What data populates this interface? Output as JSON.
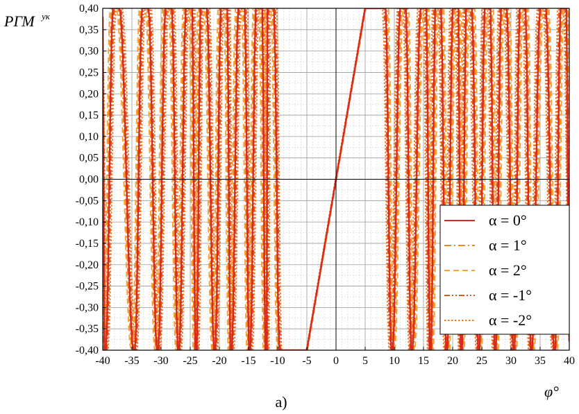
{
  "chart_data": {
    "type": "line",
    "caption": "а)",
    "ylabel_main": "РГМ",
    "ylabel_sup": "ук",
    "xlabel": "φ°",
    "xlim": [
      -40,
      40
    ],
    "ylim": [
      -0.4,
      0.4
    ],
    "x_ticks": [
      -40,
      -35,
      -30,
      -25,
      -20,
      -15,
      -10,
      -5,
      0,
      5,
      10,
      15,
      20,
      25,
      30,
      35,
      40
    ],
    "x_tick_labels": [
      "-40",
      "-35",
      "-30",
      "-25",
      "-20",
      "-15",
      "-10",
      "-5",
      "0",
      "5",
      "10",
      "15",
      "20",
      "25",
      "30",
      "35",
      "40"
    ],
    "y_ticks": [
      -0.4,
      -0.35,
      -0.3,
      -0.25,
      -0.2,
      -0.15,
      -0.1,
      -0.05,
      0,
      0.05,
      0.1,
      0.15,
      0.2,
      0.25,
      0.3,
      0.35,
      0.4
    ],
    "y_tick_labels": [
      "-0,40",
      "-0,35",
      "-0,30",
      "-0,25",
      "-0,20",
      "-0,15",
      "-0,10",
      "-0,05",
      "0,00",
      "0,05",
      "0,10",
      "0,15",
      "0,20",
      "0,25",
      "0,30",
      "0,35",
      "0,40"
    ],
    "grid": true,
    "legend_position": "right",
    "peaks_x": [
      -37.7,
      -32.7,
      -28.7,
      -25.2,
      -22.7,
      -19.2,
      -16.2,
      -13.2,
      -11.2,
      8.0,
      11.5,
      15.0,
      17.5,
      20.5,
      22.8,
      26.0,
      28.8,
      32.0,
      35.5,
      39.0
    ],
    "troughs_x": [
      -39.6,
      -34.6,
      -30.6,
      -27.0,
      -24.0,
      -20.8,
      -18.0,
      -14.8,
      -12.0,
      -9.6,
      9.6,
      13.0,
      16.2,
      19.0,
      21.5,
      24.5,
      27.3,
      30.5,
      33.5,
      37.5
    ],
    "linear_region": {
      "x": [
        -5,
        5
      ],
      "y": [
        -0.4,
        0.4
      ],
      "flat_x": [
        -7.2,
        7.5
      ]
    },
    "series": [
      {
        "name": "α = 0°",
        "color": "#d8281f",
        "style": "solid",
        "offset": 0.0
      },
      {
        "name": "α = 1°",
        "color": "#ee8a1a",
        "style": "dashdot",
        "offset": 0.25
      },
      {
        "name": "α = 2°",
        "color": "#f7a23c",
        "style": "dash",
        "offset": 0.5
      },
      {
        "name": "α = -1°",
        "color": "#e0551d",
        "style": "dashdotdot",
        "offset": -0.25
      },
      {
        "name": "α = -2°",
        "color": "#f07a20",
        "style": "dot",
        "offset": -0.5
      }
    ]
  }
}
